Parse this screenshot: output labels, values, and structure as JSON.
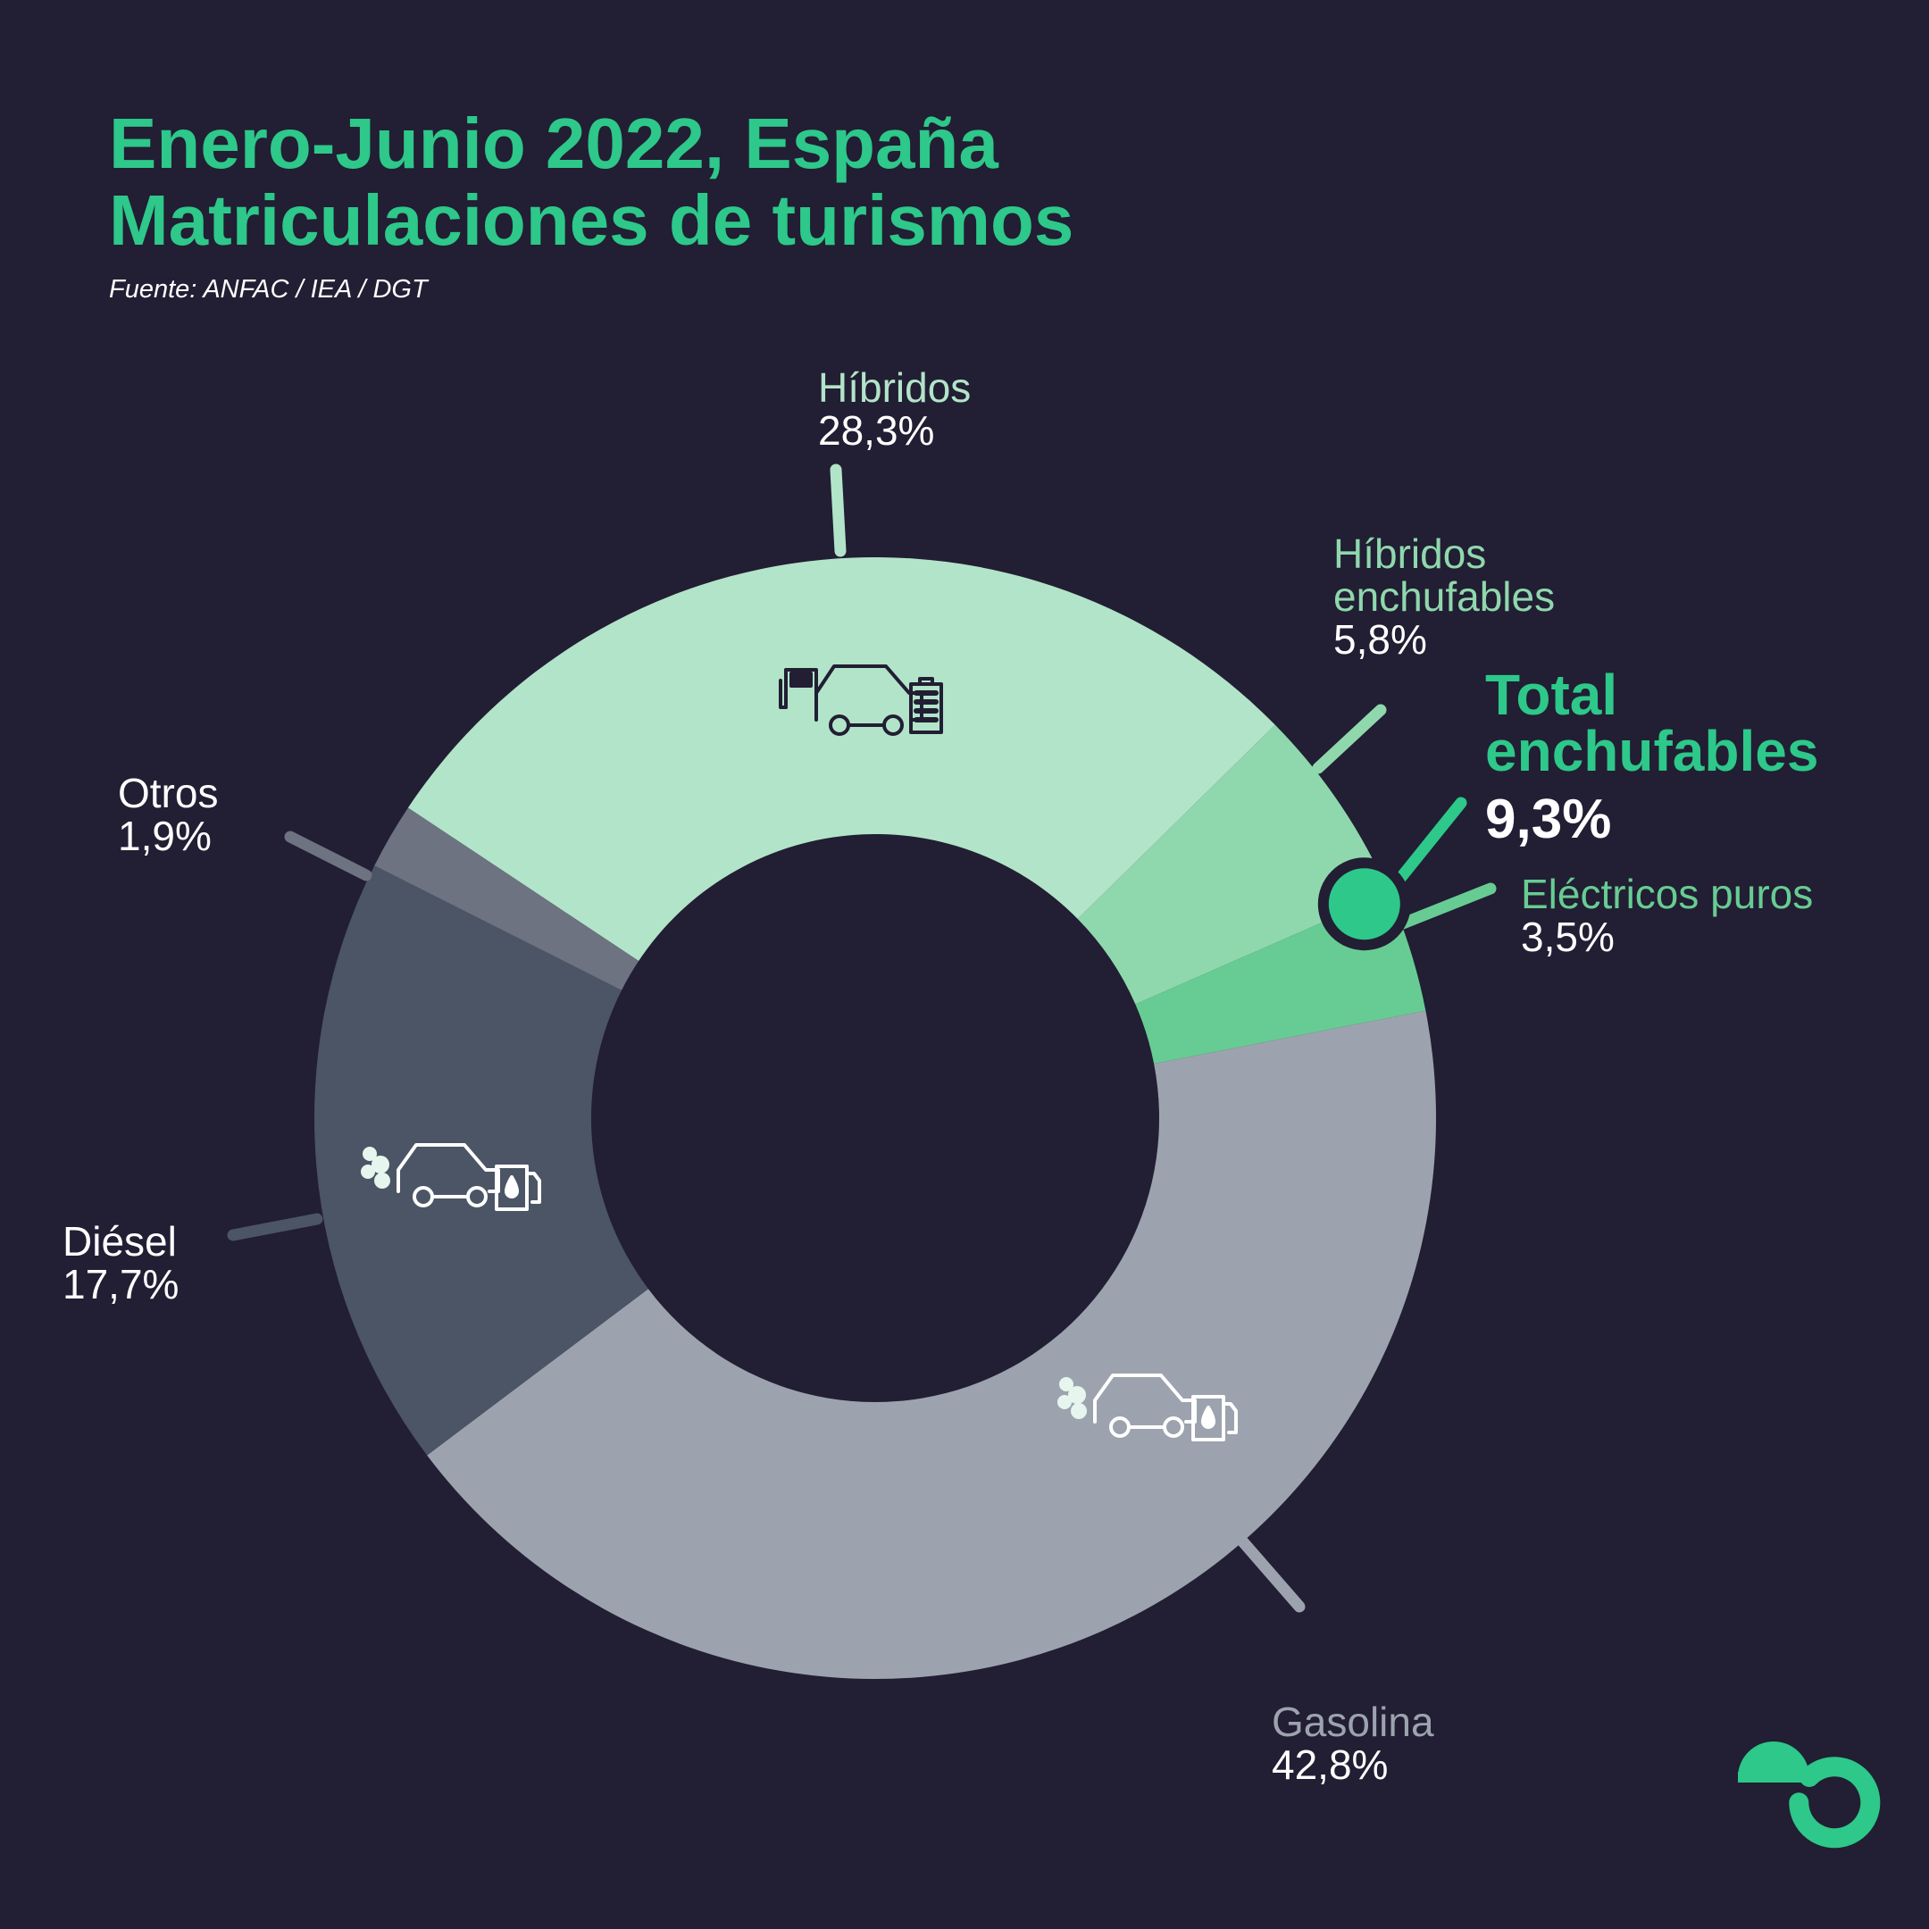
{
  "header": {
    "title_line1": "Enero-Junio 2022, España",
    "title_line2": "Matriculaciones de turismos",
    "source": "Fuente: ANFAC / IEA / DGT"
  },
  "colors": {
    "background": "#221e33",
    "accent": "#2dc88a",
    "hibridos": "#b2e4c9",
    "hibridos_enchufables": "#8fd8ad",
    "electricos_puros": "#67cc93",
    "gasolina": "#9ca3ae",
    "diesel": "#4b5565",
    "otros": "#6d7380"
  },
  "icons": {
    "hibridos": "hybrid-car-fuel-battery-icon",
    "diesel": "combustion-car-fuel-pump-icon",
    "gasolina": "combustion-car-fuel-pump-icon",
    "brand": "brand-logo-e-icon"
  },
  "chart_data": {
    "type": "pie",
    "title": "Enero-Junio 2022, España Matriculaciones de turismos",
    "unit": "%",
    "slices": [
      {
        "name": "Híbridos",
        "value": 28.3,
        "label": "28,3%",
        "color": "#b2e4c9"
      },
      {
        "name": "Híbridos enchufables",
        "value": 5.8,
        "label": "5,8%",
        "color": "#8fd8ad"
      },
      {
        "name": "Eléctricos puros",
        "value": 3.5,
        "label": "3,5%",
        "color": "#67cc93"
      },
      {
        "name": "Gasolina",
        "value": 42.8,
        "label": "42,8%",
        "color": "#9ca3ae"
      },
      {
        "name": "Diésel",
        "value": 17.7,
        "label": "17,7%",
        "color": "#4b5565"
      },
      {
        "name": "Otros",
        "value": 1.9,
        "label": "1,9%",
        "color": "#6d7380"
      }
    ],
    "annotation": {
      "label_line1": "Total",
      "label_line2": "enchufables",
      "value": 9.3,
      "value_label": "9,3%"
    }
  }
}
